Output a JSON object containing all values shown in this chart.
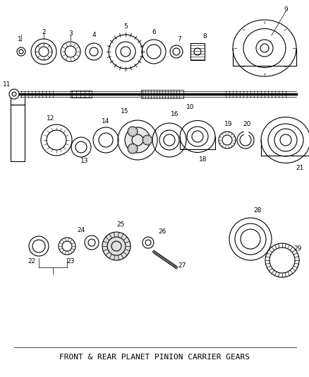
{
  "title": "FRONT & REAR PLANET PINION CARRIER GEARS",
  "background_color": "#ffffff",
  "line_color": "#000000",
  "title_fontsize": 8,
  "fig_width": 4.38,
  "fig_height": 5.33,
  "dpi": 100
}
